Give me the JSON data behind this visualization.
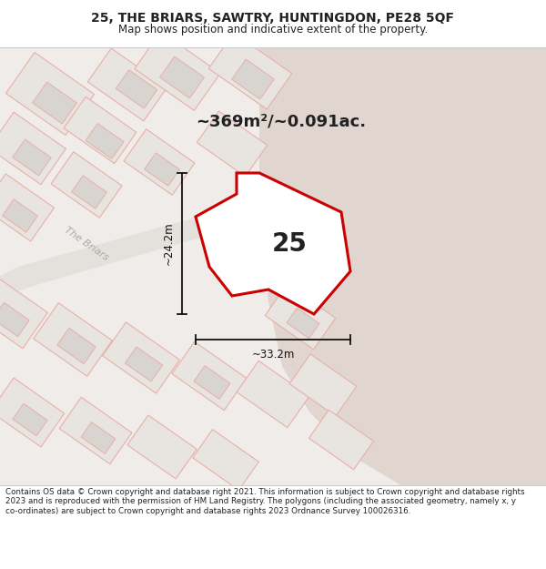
{
  "title_line1": "25, THE BRIARS, SAWTRY, HUNTINGDON, PE28 5QF",
  "title_line2": "Map shows position and indicative extent of the property.",
  "area_text": "~369m²/~0.091ac.",
  "plot_number": "25",
  "dim_horizontal": "~33.2m",
  "dim_vertical": "~24.2m",
  "street_label": "The Briars",
  "footer_text": "Contains OS data © Crown copyright and database right 2021. This information is subject to Crown copyright and database rights 2023 and is reproduced with the permission of HM Land Registry. The polygons (including the associated geometry, namely x, y co-ordinates) are subject to Crown copyright and database rights 2023 Ordnance Survey 100026316.",
  "title_bg": "#ffffff",
  "footer_bg": "#ffffff",
  "map_bg_left": "#f2efed",
  "map_bg_right": "#e8e0db",
  "plot_fill": "#ffffff",
  "plot_edge": "#cc0000",
  "parcel_fill": "#e8e4e0",
  "parcel_edge": "#e8b0a8",
  "parcel_outline_only_edge": "#e8b0a8",
  "road_stripe_color": "#d8d0cc",
  "dim_color": "#111111",
  "street_label_color": "#aaaaaa",
  "text_color": "#222222"
}
